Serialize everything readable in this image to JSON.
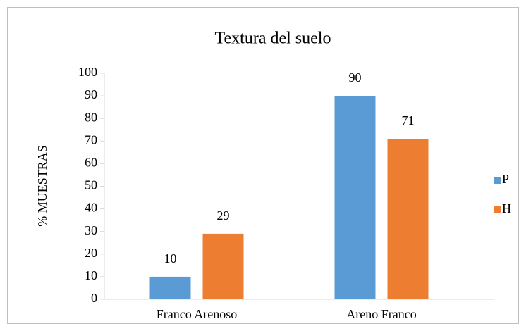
{
  "chart_data": {
    "type": "bar",
    "title": "Textura del suelo",
    "y_label": "% MUESTRAS",
    "categories": [
      "Franco Arenoso",
      "Areno Franco"
    ],
    "series": [
      {
        "name": "P",
        "color": "#5b9bd5",
        "values": [
          10,
          90
        ]
      },
      {
        "name": "H",
        "color": "#ed7d31",
        "values": [
          29,
          71
        ]
      }
    ],
    "ylim": [
      0,
      100
    ],
    "yticks": [
      0,
      10,
      20,
      30,
      40,
      50,
      60,
      70,
      80,
      90,
      100
    ],
    "grid": false,
    "legend": "right",
    "data_labels": true
  }
}
